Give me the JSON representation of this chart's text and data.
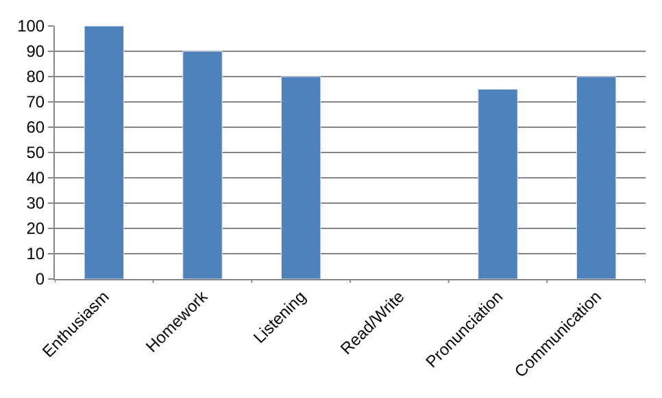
{
  "chart_data": {
    "type": "bar",
    "categories": [
      "Enthusiasm",
      "Homework",
      "Listening",
      "Read/Write",
      "Pronunciation",
      "Communication"
    ],
    "values": [
      100,
      90,
      80,
      null,
      75,
      80
    ],
    "color": "#4f81bd",
    "ylim": [
      0,
      100
    ],
    "yticks": [
      0,
      10,
      20,
      30,
      40,
      50,
      60,
      70,
      80,
      90,
      100
    ],
    "grid": "y"
  }
}
